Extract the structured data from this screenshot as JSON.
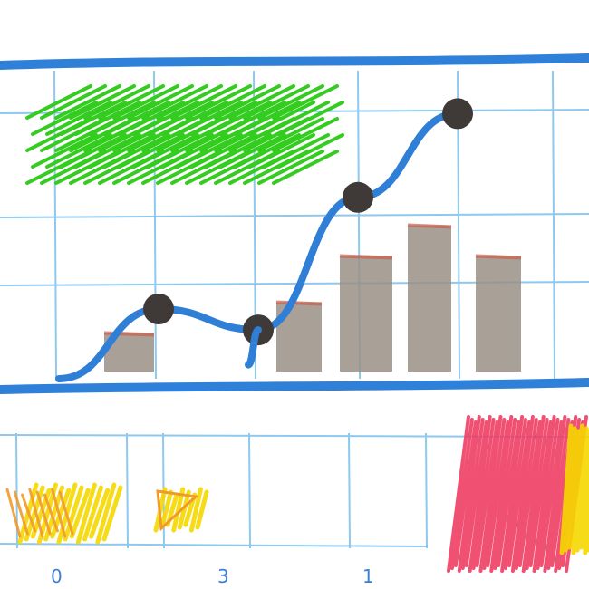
{
  "colors": {
    "paper": "#fdfdfd",
    "grid": "#8fc8ee",
    "frame": "#2f80d8",
    "line": "#2f7fd6",
    "marker": "#3f3a38",
    "bar": "#9a8f86",
    "bar_top": "#c9604e",
    "green_scribble": "#33cc1f",
    "red_scribble": "#ee3d63",
    "yellow_scribble": "#f5d700",
    "orange_scribble": "#f19a2a"
  },
  "chart_data": [
    {
      "type": "line",
      "title": "",
      "xlabel": "",
      "ylabel": "",
      "series": [
        {
          "points": [
            [
              0,
              0
            ],
            [
              1,
              0.5
            ],
            [
              2,
              0.35
            ],
            [
              3,
              1.3
            ],
            [
              4,
              1.9
            ]
          ],
          "markers": [
            false,
            true,
            true,
            true,
            true
          ]
        },
        {
          "points": [
            [
              1.9,
              0.1
            ],
            [
              2,
              0.35
            ]
          ],
          "markers": [
            false,
            false
          ]
        }
      ],
      "xlim": [
        0,
        4
      ],
      "ylim": [
        0,
        2
      ],
      "grid": true
    },
    {
      "type": "bar",
      "title": "",
      "values": [
        0.25,
        0.45,
        0.75,
        0.95,
        0.75
      ],
      "grid": true
    },
    {
      "type": "bar",
      "title": "",
      "tick_labels": [
        "0",
        "3",
        "1"
      ],
      "grid": true
    }
  ]
}
